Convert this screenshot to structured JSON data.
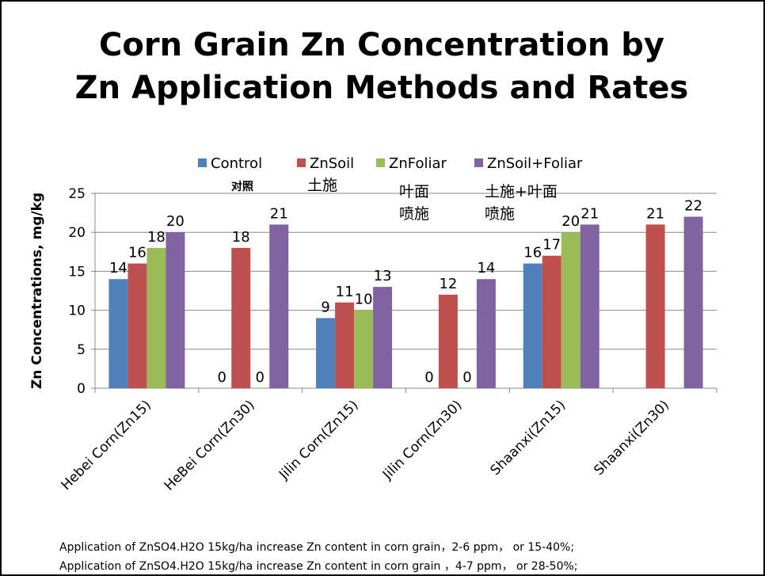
{
  "chart_data": {
    "type": "bar",
    "title": "Corn Grain Zn Concentration by Zn Application Methods and Rates",
    "y_label": "Zn Concentrations, mg/kg",
    "categories": [
      "Hebei Corn(Zn15)",
      "HeBei Corn(Zn30)",
      "Jilin Corn(Zn15)",
      "Jilin Corn(Zn30)",
      "Shaanxi(Zn15)",
      "Shaanxi(Zn30)"
    ],
    "series": [
      {
        "name": "Control",
        "color": "#4F81BD",
        "values": [
          14,
          0,
          9,
          0,
          16,
          null
        ]
      },
      {
        "name": "ZnSoil",
        "color": "#C0504D",
        "values": [
          16,
          18,
          11,
          12,
          17,
          21
        ]
      },
      {
        "name": "ZnFoliar",
        "color": "#9BBB59",
        "values": [
          18,
          0,
          10,
          0,
          20,
          null
        ]
      },
      {
        "name": "ZnSoil+Foliar",
        "color": "#8064A2",
        "values": [
          20,
          21,
          13,
          14,
          21,
          22
        ]
      }
    ],
    "ylim": [
      0,
      25
    ],
    "yticks": [
      0,
      5,
      10,
      15,
      20,
      25
    ],
    "grid": true,
    "legend": "top",
    "annotations": [
      "对照",
      "土施",
      "叶面",
      "喷施",
      "土施+叶面",
      "喷施"
    ]
  },
  "notes": [
    "Application of ZnSO4.H2O 15kg/ha increase Zn content in corn grain，2-6 ppm， or 15-40%;",
    "Application of ZnSO4.H2O 15kg/ha increase Zn content in corn grain ，4-7 ppm， or 28-50%;"
  ]
}
